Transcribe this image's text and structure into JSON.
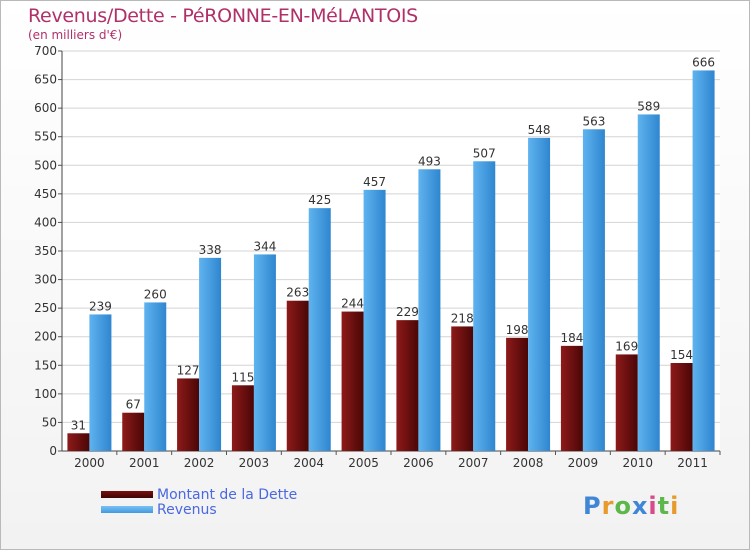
{
  "title": "Revenus/Dette - PéRONNE-EN-MéLANTOIS",
  "subtitle": "(en milliers d'€)",
  "brand": "Proxiti",
  "colors": {
    "debt": "#7a0f0f",
    "revenue": "#3f9be0",
    "title": "#b0306a",
    "legend_text": "#4a68e0"
  },
  "chart_data": {
    "type": "bar",
    "categories": [
      "2000",
      "2001",
      "2002",
      "2003",
      "2004",
      "2005",
      "2006",
      "2007",
      "2008",
      "2009",
      "2010",
      "2011"
    ],
    "series": [
      {
        "name": "Montant de la Dette",
        "values": [
          31,
          67,
          127,
          115,
          263,
          244,
          229,
          218,
          198,
          184,
          169,
          154
        ]
      },
      {
        "name": "Revenus",
        "values": [
          239,
          260,
          338,
          344,
          425,
          457,
          493,
          507,
          548,
          563,
          589,
          666
        ]
      }
    ],
    "ylim": [
      0,
      700
    ],
    "yticks": [
      0,
      50,
      100,
      150,
      200,
      250,
      300,
      350,
      400,
      450,
      500,
      550,
      600,
      650,
      700
    ],
    "grid": true,
    "legend_position": "bottom-left"
  }
}
